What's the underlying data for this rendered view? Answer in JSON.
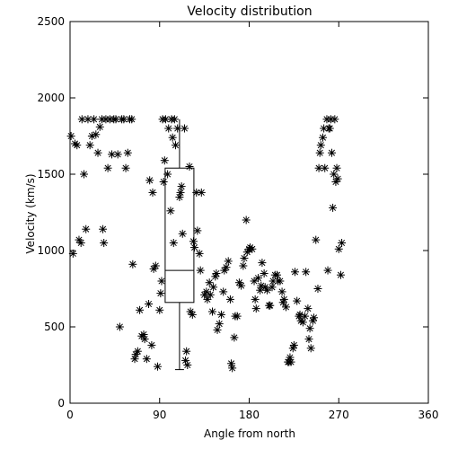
{
  "chart_data": {
    "type": "scatter",
    "title": "Velocity distribution",
    "xlabel": "Angle from north",
    "ylabel": "Velocity (km/s)",
    "xlim": [
      0,
      360
    ],
    "ylim": [
      0,
      2500
    ],
    "xticks": [
      0,
      90,
      180,
      270,
      360
    ],
    "yticks": [
      0,
      500,
      1000,
      1500,
      2000,
      2500
    ],
    "grid": false,
    "marker": "asterisk",
    "color": "#000000",
    "points": [
      [
        1,
        1750
      ],
      [
        3,
        980
      ],
      [
        5,
        1700
      ],
      [
        7,
        1690
      ],
      [
        9,
        1070
      ],
      [
        11,
        1050
      ],
      [
        12,
        1860
      ],
      [
        14,
        1500
      ],
      [
        16,
        1140
      ],
      [
        18,
        1860
      ],
      [
        20,
        1690
      ],
      [
        22,
        1750
      ],
      [
        24,
        1860
      ],
      [
        26,
        1760
      ],
      [
        28,
        1640
      ],
      [
        30,
        1810
      ],
      [
        32,
        1860
      ],
      [
        33,
        1140
      ],
      [
        34,
        1050
      ],
      [
        36,
        1860
      ],
      [
        38,
        1540
      ],
      [
        40,
        1860
      ],
      [
        42,
        1630
      ],
      [
        44,
        1860
      ],
      [
        46,
        1860
      ],
      [
        48,
        1630
      ],
      [
        50,
        500
      ],
      [
        52,
        1860
      ],
      [
        54,
        1860
      ],
      [
        56,
        1540
      ],
      [
        58,
        1640
      ],
      [
        60,
        1860
      ],
      [
        62,
        1860
      ],
      [
        63,
        910
      ],
      [
        65,
        290
      ],
      [
        66,
        320
      ],
      [
        68,
        340
      ],
      [
        70,
        610
      ],
      [
        72,
        440
      ],
      [
        74,
        450
      ],
      [
        75,
        420
      ],
      [
        77,
        290
      ],
      [
        79,
        650
      ],
      [
        80,
        1460
      ],
      [
        82,
        380
      ],
      [
        83,
        1380
      ],
      [
        84,
        880
      ],
      [
        86,
        900
      ],
      [
        88,
        240
      ],
      [
        90,
        610
      ],
      [
        91,
        720
      ],
      [
        92,
        800
      ],
      [
        93,
        1860
      ],
      [
        94,
        1450
      ],
      [
        95,
        1590
      ],
      [
        96,
        1860
      ],
      [
        98,
        1500
      ],
      [
        99,
        1800
      ],
      [
        101,
        1260
      ],
      [
        102,
        1860
      ],
      [
        103,
        1740
      ],
      [
        104,
        1050
      ],
      [
        105,
        1860
      ],
      [
        106,
        1690
      ],
      [
        108,
        1800
      ],
      [
        110,
        1350
      ],
      [
        111,
        1380
      ],
      [
        112,
        1420
      ],
      [
        113,
        1110
      ],
      [
        115,
        1800
      ],
      [
        116,
        280
      ],
      [
        117,
        340
      ],
      [
        118,
        250
      ],
      [
        120,
        1550
      ],
      [
        121,
        600
      ],
      [
        123,
        580
      ],
      [
        124,
        1060
      ],
      [
        125,
        1020
      ],
      [
        127,
        1380
      ],
      [
        128,
        1130
      ],
      [
        130,
        980
      ],
      [
        131,
        870
      ],
      [
        132,
        1380
      ],
      [
        135,
        710
      ],
      [
        137,
        730
      ],
      [
        138,
        680
      ],
      [
        140,
        790
      ],
      [
        141,
        710
      ],
      [
        143,
        600
      ],
      [
        144,
        760
      ],
      [
        146,
        830
      ],
      [
        147,
        850
      ],
      [
        148,
        480
      ],
      [
        150,
        520
      ],
      [
        152,
        580
      ],
      [
        154,
        730
      ],
      [
        155,
        870
      ],
      [
        157,
        890
      ],
      [
        159,
        930
      ],
      [
        161,
        680
      ],
      [
        162,
        260
      ],
      [
        163,
        230
      ],
      [
        165,
        430
      ],
      [
        166,
        570
      ],
      [
        168,
        570
      ],
      [
        170,
        790
      ],
      [
        172,
        770
      ],
      [
        174,
        900
      ],
      [
        175,
        950
      ],
      [
        177,
        1200
      ],
      [
        178,
        990
      ],
      [
        180,
        1010
      ],
      [
        181,
        1020
      ],
      [
        183,
        1010
      ],
      [
        185,
        800
      ],
      [
        186,
        680
      ],
      [
        187,
        620
      ],
      [
        189,
        820
      ],
      [
        191,
        740
      ],
      [
        192,
        770
      ],
      [
        193,
        920
      ],
      [
        195,
        850
      ],
      [
        196,
        760
      ],
      [
        198,
        740
      ],
      [
        200,
        640
      ],
      [
        201,
        640
      ],
      [
        203,
        760
      ],
      [
        204,
        800
      ],
      [
        206,
        840
      ],
      [
        208,
        840
      ],
      [
        209,
        800
      ],
      [
        211,
        800
      ],
      [
        213,
        730
      ],
      [
        214,
        660
      ],
      [
        215,
        680
      ],
      [
        217,
        630
      ],
      [
        219,
        270
      ],
      [
        220,
        270
      ],
      [
        221,
        300
      ],
      [
        222,
        270
      ],
      [
        224,
        360
      ],
      [
        225,
        380
      ],
      [
        226,
        860
      ],
      [
        228,
        670
      ],
      [
        230,
        570
      ],
      [
        231,
        580
      ],
      [
        232,
        540
      ],
      [
        234,
        530
      ],
      [
        236,
        570
      ],
      [
        237,
        860
      ],
      [
        239,
        620
      ],
      [
        240,
        420
      ],
      [
        241,
        490
      ],
      [
        242,
        360
      ],
      [
        244,
        540
      ],
      [
        245,
        560
      ],
      [
        247,
        1070
      ],
      [
        249,
        750
      ],
      [
        250,
        1540
      ],
      [
        251,
        1640
      ],
      [
        252,
        1690
      ],
      [
        254,
        1740
      ],
      [
        255,
        1800
      ],
      [
        256,
        1540
      ],
      [
        258,
        1860
      ],
      [
        259,
        870
      ],
      [
        260,
        1800
      ],
      [
        261,
        1800
      ],
      [
        262,
        1860
      ],
      [
        263,
        1640
      ],
      [
        264,
        1280
      ],
      [
        265,
        1500
      ],
      [
        266,
        1860
      ],
      [
        267,
        1450
      ],
      [
        268,
        1540
      ],
      [
        269,
        1470
      ],
      [
        270,
        1010
      ],
      [
        272,
        840
      ],
      [
        273,
        1050
      ]
    ],
    "boxplot": {
      "x": 110,
      "whisker_low": 220,
      "q1": 660,
      "median": 870,
      "q3": 1540,
      "whisker_high": 1860
    }
  }
}
